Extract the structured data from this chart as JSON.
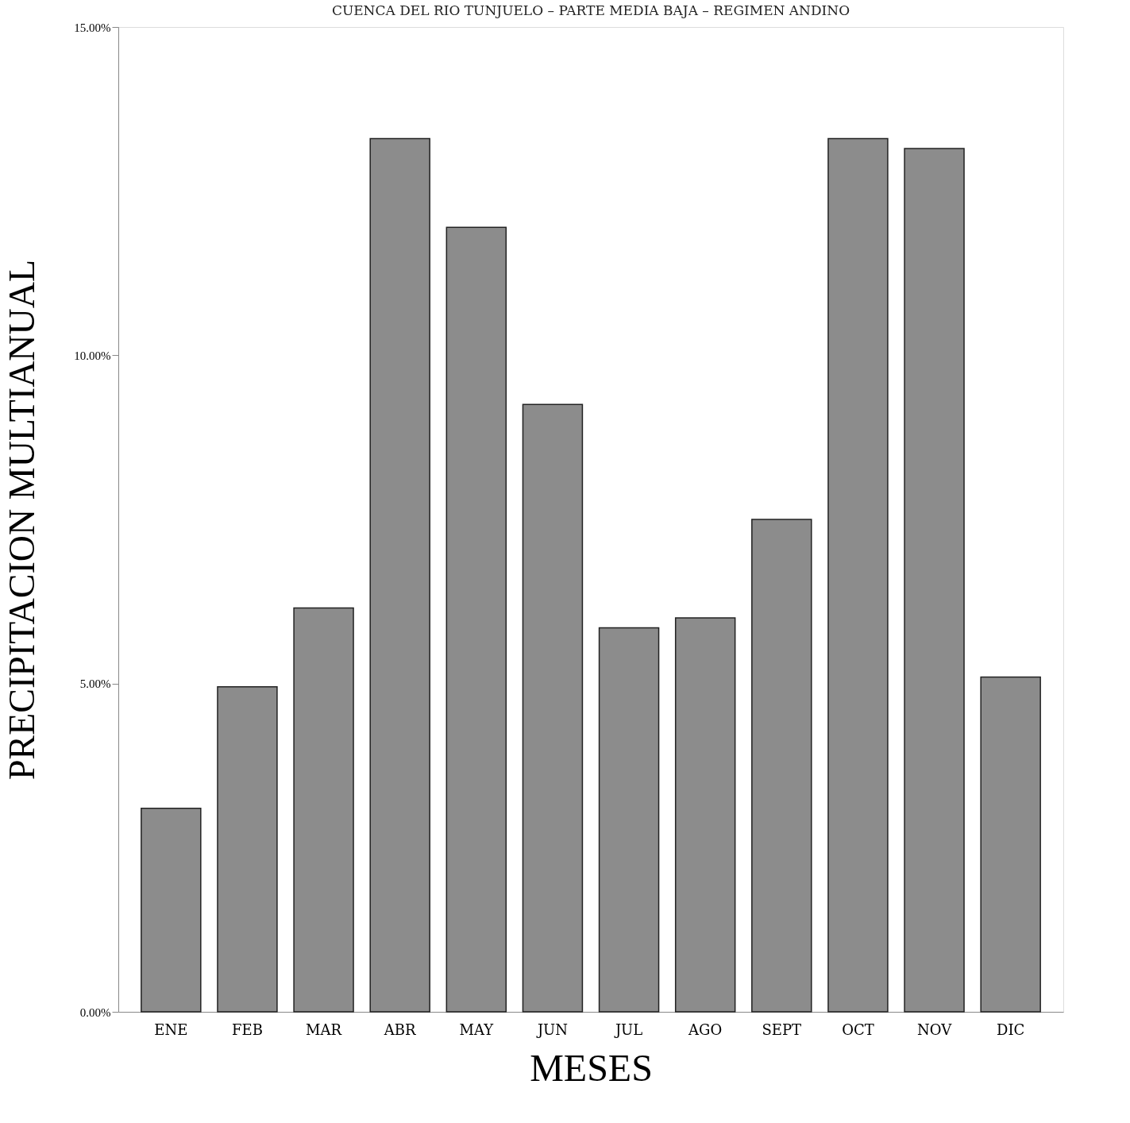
{
  "chart_data": {
    "type": "bar",
    "title": "CUENCA DEL RIO TUNJUELO – PARTE MEDIA BAJA – REGIMEN ANDINO",
    "xlabel": "MESES",
    "ylabel": "PRECIPITACION MULTIANUAL",
    "categories": [
      "ENE",
      "FEB",
      "MAR",
      "ABR",
      "MAY",
      "JUN",
      "JUL",
      "AGO",
      "SEPT",
      "OCT",
      "NOV",
      "DIC"
    ],
    "values": [
      3.1,
      4.95,
      6.15,
      13.3,
      11.95,
      9.25,
      5.85,
      6.0,
      7.5,
      13.3,
      13.15,
      5.1
    ],
    "color": "#8c8c8c",
    "ylim": [
      0,
      15
    ],
    "yticks": [
      {
        "value": 0,
        "label": "0.00%"
      },
      {
        "value": 5,
        "label": "5.00%"
      },
      {
        "value": 10,
        "label": "10.00%"
      },
      {
        "value": 15,
        "label": "15.00%"
      }
    ],
    "grid": false
  }
}
